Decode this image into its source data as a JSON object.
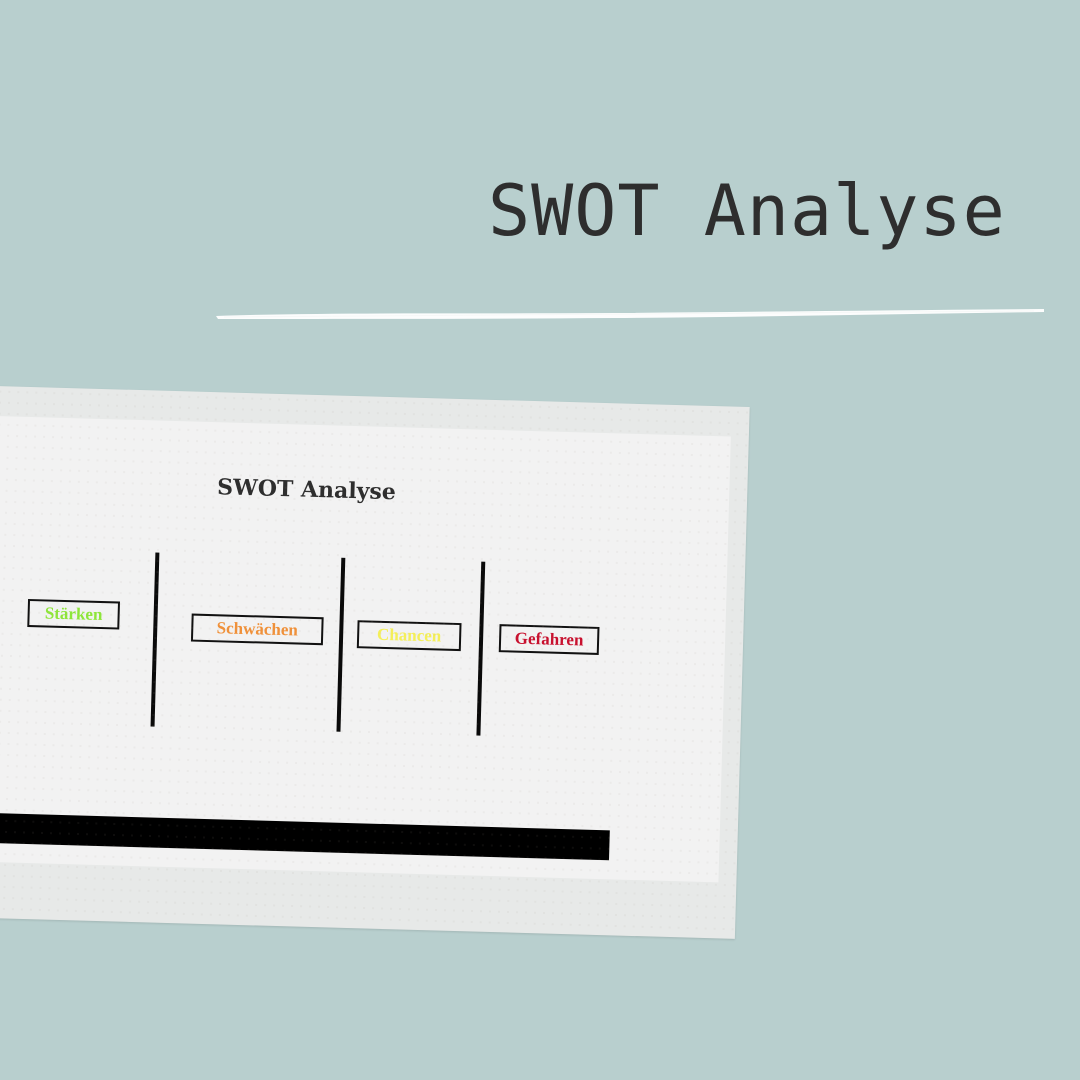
{
  "title": "SWOT Analyse",
  "document": {
    "title": "SWOT Analyse",
    "categories": [
      {
        "label": "Stärken",
        "color": "#8ee63a"
      },
      {
        "label": "Schwächen",
        "color": "#f0913a"
      },
      {
        "label": "Chancen",
        "color": "#f4ef5a"
      },
      {
        "label": "Gefahren",
        "color": "#c8102e"
      }
    ]
  },
  "colors": {
    "background": "#b8cfce",
    "title_text": "#2e2e2e",
    "brush_line": "#ffffff",
    "sheet": "#f2f2f2",
    "bar": "#000000"
  }
}
